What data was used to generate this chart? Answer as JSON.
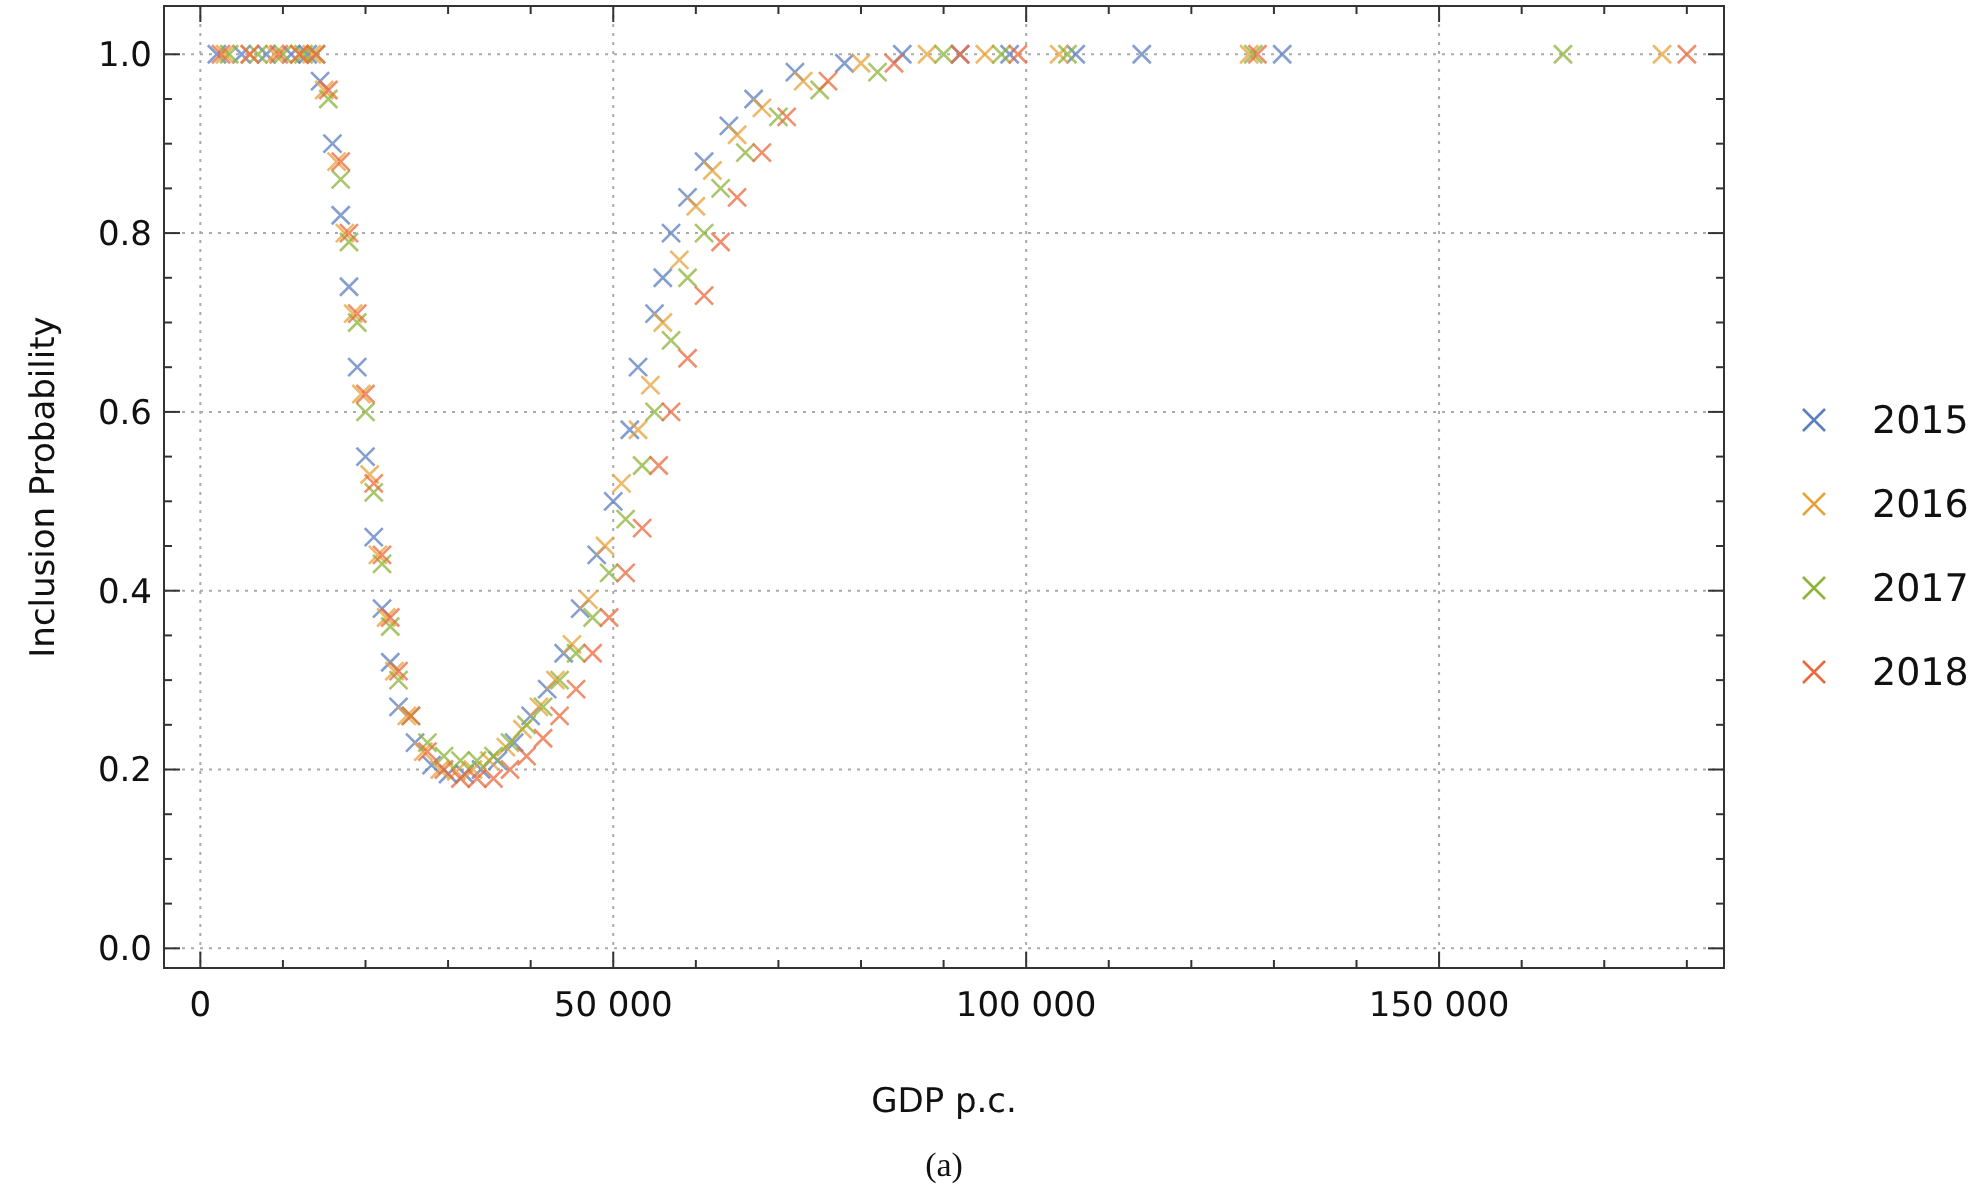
{
  "chart_data": {
    "type": "scatter",
    "xlabel": "GDP p.c.",
    "ylabel": "Inclusion Probability",
    "annotations": [
      "(a)"
    ],
    "xlim": [
      -4400,
      184500
    ],
    "ylim": [
      -0.022,
      1.054
    ],
    "xticks": [
      {
        "value": 0,
        "label": "0"
      },
      {
        "value": 10000,
        "label": null
      },
      {
        "value": 20000,
        "label": null
      },
      {
        "value": 30000,
        "label": null
      },
      {
        "value": 40000,
        "label": null
      },
      {
        "value": 50000,
        "label": "50 000"
      },
      {
        "value": 60000,
        "label": null
      },
      {
        "value": 70000,
        "label": null
      },
      {
        "value": 80000,
        "label": null
      },
      {
        "value": 90000,
        "label": null
      },
      {
        "value": 100000,
        "label": "100 000"
      },
      {
        "value": 110000,
        "label": null
      },
      {
        "value": 120000,
        "label": null
      },
      {
        "value": 130000,
        "label": null
      },
      {
        "value": 140000,
        "label": null
      },
      {
        "value": 150000,
        "label": "150 000"
      },
      {
        "value": 160000,
        "label": null
      },
      {
        "value": 170000,
        "label": null
      },
      {
        "value": 180000,
        "label": null
      }
    ],
    "yticks": [
      {
        "value": 0,
        "label": "0.0"
      },
      {
        "value": 0.05,
        "label": null
      },
      {
        "value": 0.1,
        "label": null
      },
      {
        "value": 0.15,
        "label": null
      },
      {
        "value": 0.2,
        "label": "0.2"
      },
      {
        "value": 0.25,
        "label": null
      },
      {
        "value": 0.3,
        "label": null
      },
      {
        "value": 0.35,
        "label": null
      },
      {
        "value": 0.4,
        "label": "0.4"
      },
      {
        "value": 0.45,
        "label": null
      },
      {
        "value": 0.5,
        "label": null
      },
      {
        "value": 0.55,
        "label": null
      },
      {
        "value": 0.6,
        "label": "0.6"
      },
      {
        "value": 0.65,
        "label": null
      },
      {
        "value": 0.7,
        "label": null
      },
      {
        "value": 0.75,
        "label": null
      },
      {
        "value": 0.8,
        "label": "0.8"
      },
      {
        "value": 0.85,
        "label": null
      },
      {
        "value": 0.9,
        "label": null
      },
      {
        "value": 0.95,
        "label": null
      },
      {
        "value": 1,
        "label": "1.0"
      }
    ],
    "grid": true,
    "legend": "right",
    "marker": "cross",
    "series": [
      {
        "name": "2015",
        "color": "#5b7fbf",
        "x": [
          2000,
          5000,
          8000,
          11000,
          13000,
          14500,
          16000,
          17000,
          18000,
          19000,
          20000,
          21000,
          22000,
          23000,
          24000,
          26000,
          28000,
          30000,
          32000,
          34000,
          36000,
          38000,
          40000,
          42000,
          44000,
          46000,
          48000,
          50000,
          52000,
          53000,
          55000,
          56000,
          57000,
          59000,
          61000,
          64000,
          67000,
          72000,
          78000,
          85000,
          92000,
          98000,
          106000,
          114000,
          131000
        ],
        "values": [
          1,
          1,
          1,
          1,
          1,
          0.97,
          0.9,
          0.82,
          0.74,
          0.65,
          0.55,
          0.46,
          0.38,
          0.32,
          0.27,
          0.23,
          0.205,
          0.195,
          0.195,
          0.2,
          0.21,
          0.23,
          0.26,
          0.29,
          0.33,
          0.38,
          0.44,
          0.5,
          0.58,
          0.65,
          0.71,
          0.75,
          0.8,
          0.84,
          0.88,
          0.92,
          0.95,
          0.98,
          0.99,
          1,
          1,
          1,
          1,
          1,
          1
        ]
      },
      {
        "name": "2016",
        "color": "#e8a23a",
        "x": [
          3000,
          6000,
          9000,
          12000,
          13500,
          15000,
          16500,
          17500,
          18500,
          19500,
          20500,
          21500,
          22500,
          23500,
          25000,
          27000,
          29000,
          31000,
          33000,
          35000,
          37000,
          39000,
          41000,
          43000,
          45000,
          47000,
          49000,
          51000,
          53000,
          54500,
          56000,
          58000,
          60000,
          62000,
          65000,
          68000,
          73000,
          80000,
          88000,
          95000,
          104000,
          127000,
          177000
        ],
        "values": [
          1,
          1,
          1,
          1,
          1,
          0.96,
          0.88,
          0.8,
          0.71,
          0.62,
          0.53,
          0.44,
          0.37,
          0.31,
          0.26,
          0.22,
          0.2,
          0.198,
          0.2,
          0.21,
          0.225,
          0.245,
          0.27,
          0.3,
          0.34,
          0.39,
          0.45,
          0.52,
          0.58,
          0.63,
          0.7,
          0.77,
          0.83,
          0.87,
          0.91,
          0.94,
          0.97,
          0.99,
          1,
          1,
          1,
          1,
          1
        ]
      },
      {
        "name": "2017",
        "color": "#8db33a",
        "x": [
          3500,
          7000,
          10000,
          12500,
          14000,
          15500,
          17000,
          18000,
          19000,
          20000,
          21000,
          22000,
          23000,
          24000,
          25500,
          27500,
          29500,
          31500,
          33500,
          35500,
          37500,
          39500,
          41500,
          43500,
          45500,
          47500,
          49500,
          51500,
          53500,
          55000,
          57000,
          59000,
          61000,
          63000,
          66000,
          70000,
          75000,
          82000,
          90000,
          97000,
          105000,
          127500,
          165000
        ],
        "values": [
          1,
          1,
          1,
          1,
          1,
          0.95,
          0.86,
          0.79,
          0.7,
          0.6,
          0.51,
          0.43,
          0.36,
          0.3,
          0.26,
          0.23,
          0.215,
          0.21,
          0.21,
          0.215,
          0.23,
          0.25,
          0.27,
          0.3,
          0.33,
          0.37,
          0.42,
          0.48,
          0.54,
          0.6,
          0.68,
          0.75,
          0.8,
          0.85,
          0.89,
          0.93,
          0.96,
          0.98,
          1,
          1,
          1,
          1,
          1
        ]
      },
      {
        "name": "2018",
        "color": "#ea6a3e",
        "x": [
          2500,
          6000,
          9500,
          12000,
          14000,
          15500,
          17000,
          18000,
          19000,
          20000,
          21000,
          22000,
          23000,
          24000,
          25500,
          27500,
          29500,
          31500,
          33500,
          35500,
          37500,
          39500,
          41500,
          43500,
          45500,
          47500,
          49500,
          51500,
          53500,
          55500,
          57000,
          59000,
          61000,
          63000,
          65000,
          68000,
          71000,
          76000,
          84000,
          92000,
          99000,
          128000,
          180000
        ],
        "values": [
          1,
          1,
          1,
          1,
          1,
          0.96,
          0.88,
          0.8,
          0.71,
          0.62,
          0.52,
          0.44,
          0.37,
          0.31,
          0.26,
          0.22,
          0.2,
          0.19,
          0.19,
          0.19,
          0.2,
          0.215,
          0.235,
          0.26,
          0.29,
          0.33,
          0.37,
          0.42,
          0.47,
          0.54,
          0.6,
          0.66,
          0.73,
          0.79,
          0.84,
          0.89,
          0.93,
          0.97,
          0.99,
          1,
          1,
          1,
          1
        ]
      }
    ]
  }
}
